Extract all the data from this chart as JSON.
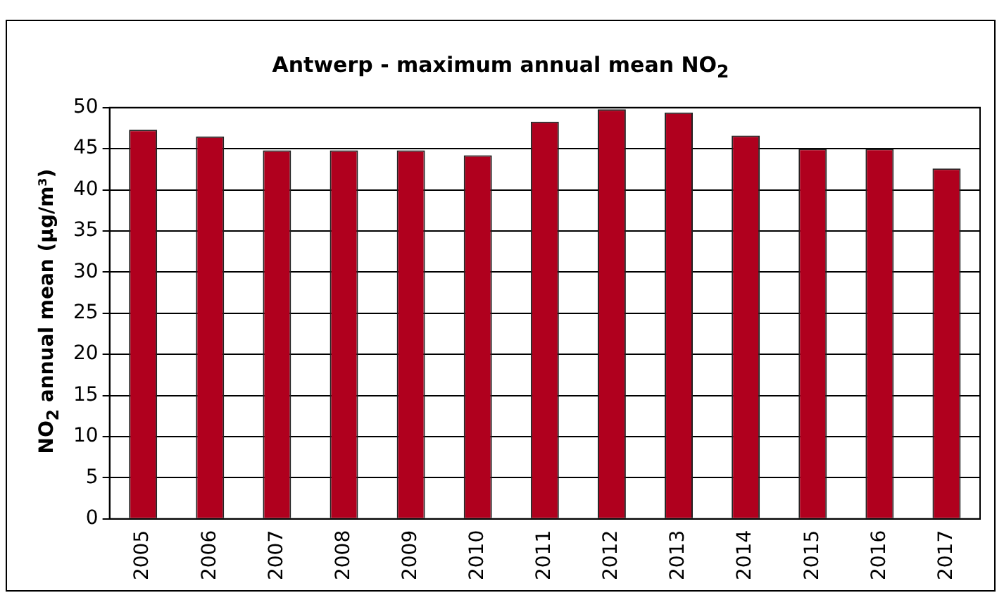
{
  "chart_data": {
    "type": "bar",
    "title": "Antwerp - maximum annual mean NO$_{2}$",
    "ylabel": "NO$_{2}$ annual mean (µg/m³)",
    "categories": [
      "2005",
      "2006",
      "2007",
      "2008",
      "2009",
      "2010",
      "2011",
      "2012",
      "2013",
      "2014",
      "2015",
      "2016",
      "2017"
    ],
    "series": [
      {
        "color": "#b0001e",
        "values": [
          47.3,
          46.5,
          44.8,
          44.8,
          44.8,
          44.2,
          48.3,
          49.8,
          49.4,
          46.6,
          45.0,
          45.0,
          42.6
        ]
      }
    ],
    "ylim": [
      0,
      50
    ],
    "yticks": [
      0,
      5,
      10,
      15,
      20,
      25,
      30,
      35,
      40,
      45,
      50
    ],
    "grid": "y",
    "legend": false
  }
}
